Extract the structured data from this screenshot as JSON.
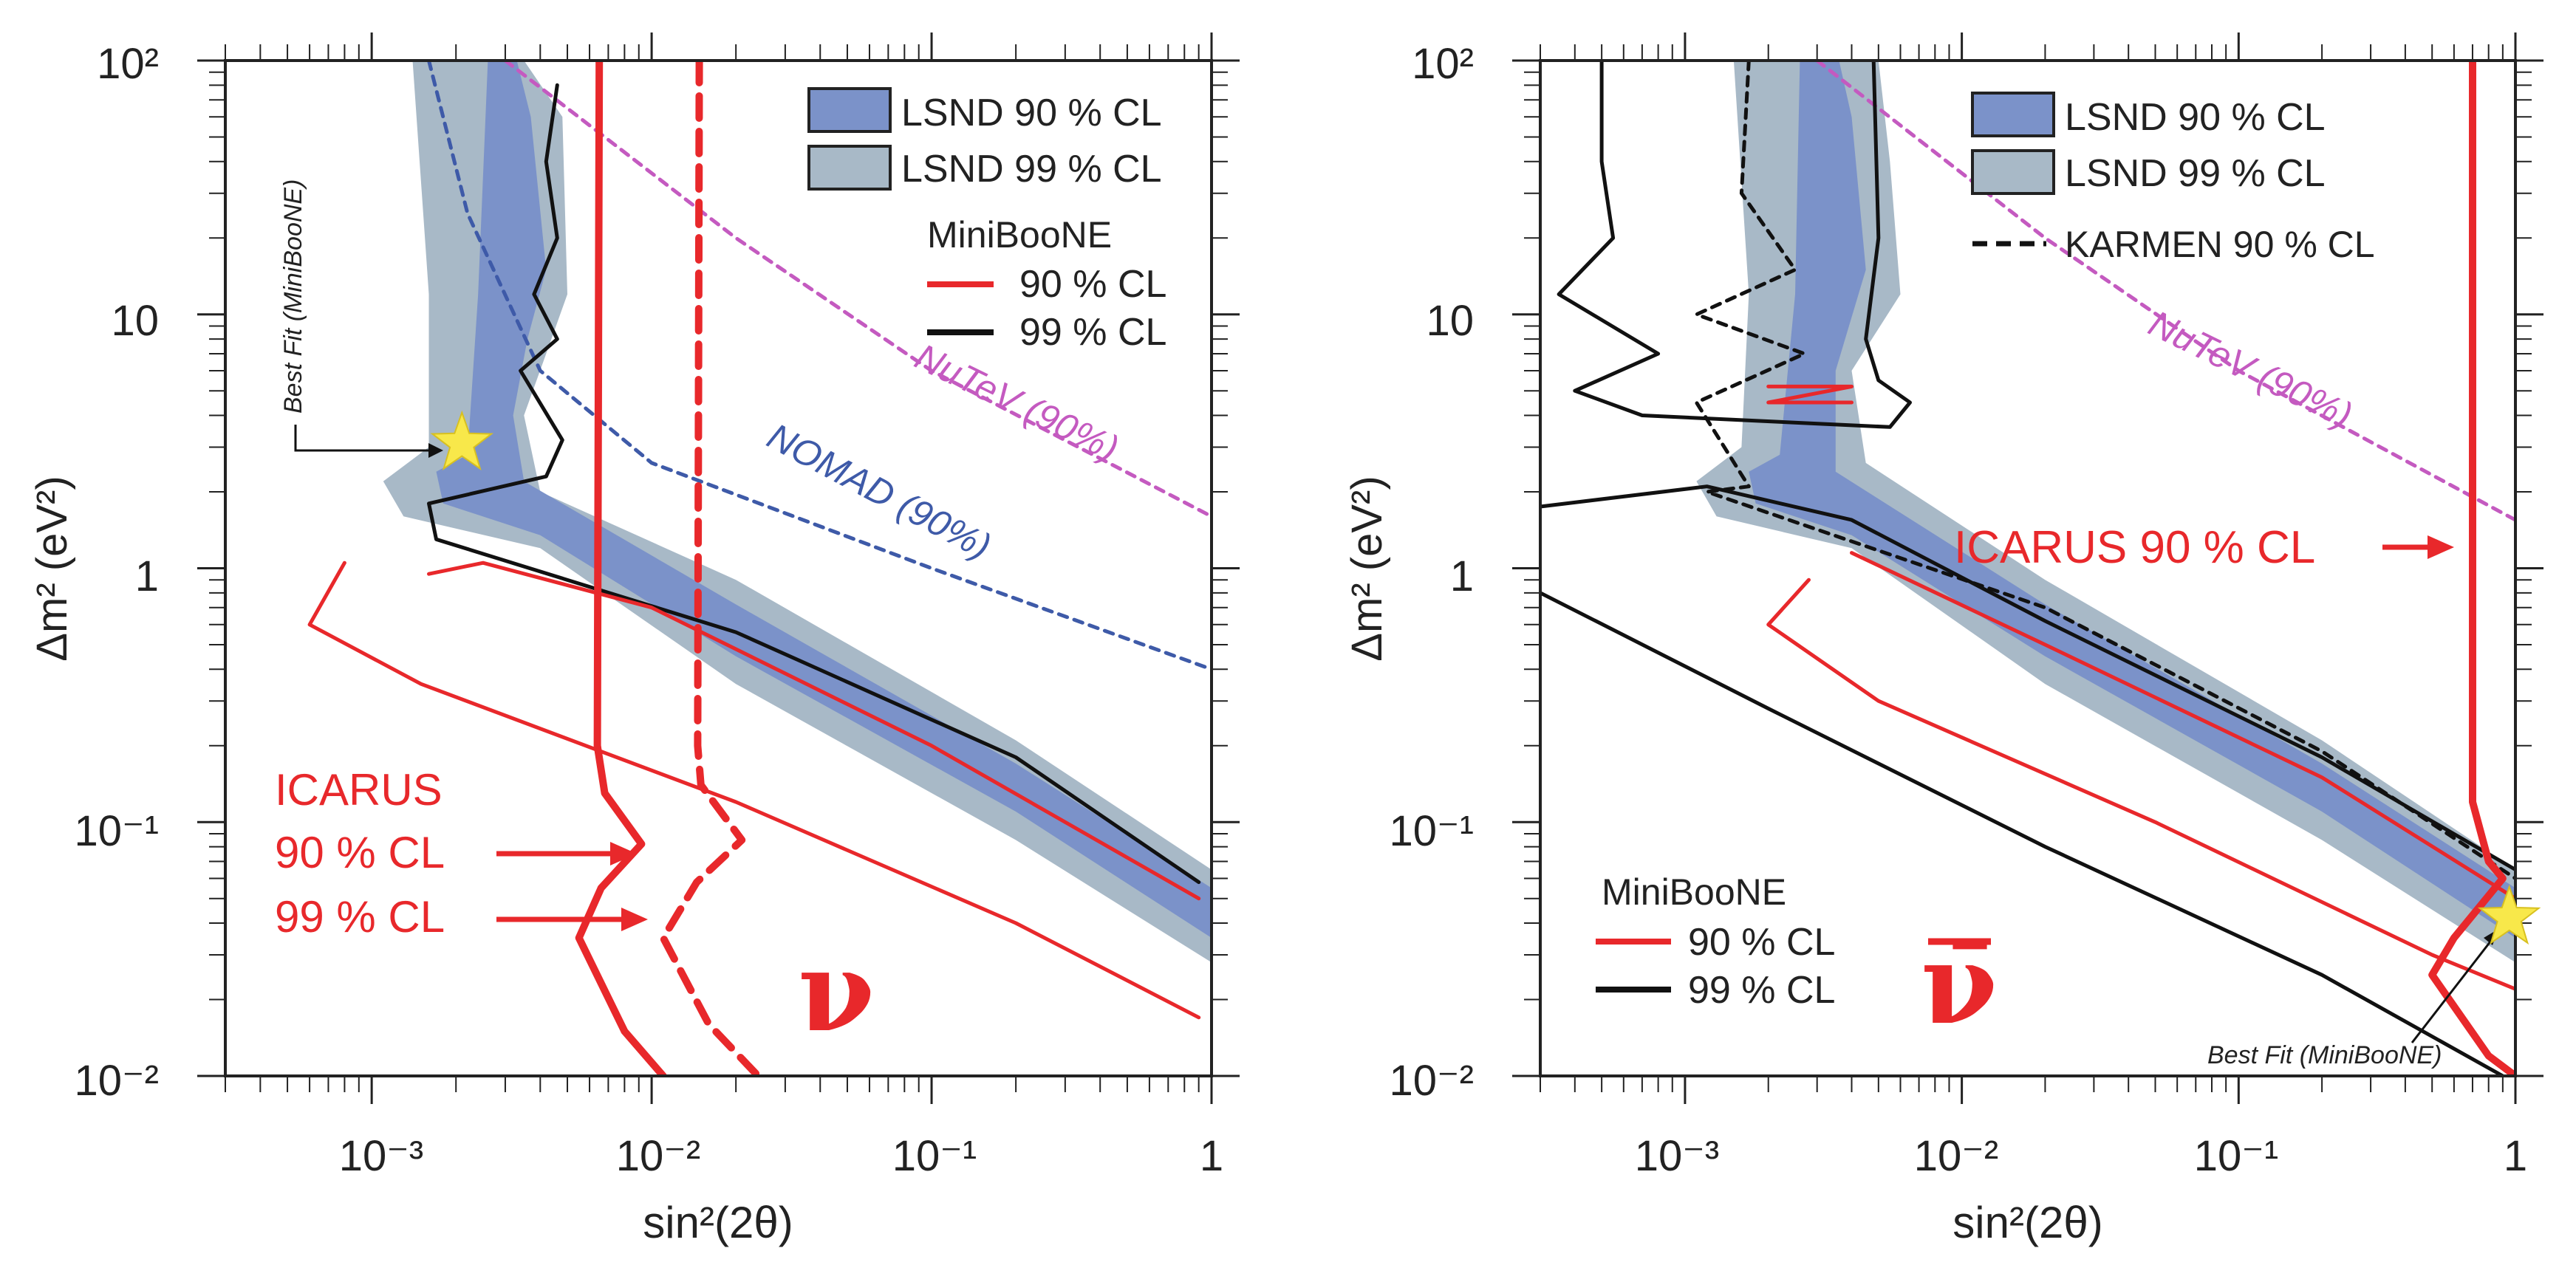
{
  "chart_data": [
    {
      "type": "line",
      "title": "",
      "symbol": "ν",
      "xlabel": "sin²(2θ)",
      "ylabel": "Δm² (eV²)",
      "xscale": "log",
      "yscale": "log",
      "xlim": [
        0.0003,
        1
      ],
      "ylim": [
        0.01,
        100
      ],
      "x_tick_labels": [
        "10⁻³",
        "10⁻²",
        "10⁻¹",
        "1"
      ],
      "y_tick_labels": [
        "10⁻²",
        "10⁻¹",
        "1",
        "10",
        "10²"
      ],
      "legend": {
        "placement": "top-right",
        "items": [
          "LSND 90 % CL",
          "LSND 99 % CL"
        ],
        "heading": "MiniBooNE",
        "lines": [
          "90 % CL",
          "99 % CL"
        ]
      },
      "annotations": {
        "best_fit": "Best Fit (MiniBooNE)",
        "nutev": "NuTeV (90%)",
        "nomad": "NOMAD (90%)",
        "icarus_title": "ICARUS",
        "icarus_90": "90 % CL",
        "icarus_99": "99 % CL"
      },
      "best_fit_point": {
        "x": 0.0021,
        "y": 3.1
      },
      "series": [
        {
          "name": "LSND 99 % CL",
          "kind": "band",
          "color": "#a8b9c7",
          "upper": [
            [
              0.0016,
              100
            ],
            [
              0.0035,
              100
            ],
            [
              0.0048,
              60
            ],
            [
              0.005,
              12
            ],
            [
              0.0042,
              7
            ],
            [
              0.0035,
              4
            ],
            [
              0.004,
              2
            ],
            [
              0.02,
              0.9
            ],
            [
              0.2,
              0.21
            ],
            [
              1,
              0.065
            ]
          ],
          "lower": [
            [
              1,
              0.028
            ],
            [
              0.2,
              0.085
            ],
            [
              0.02,
              0.35
            ],
            [
              0.004,
              1.2
            ],
            [
              0.0013,
              1.6
            ],
            [
              0.0011,
              2.2
            ],
            [
              0.0016,
              3.0
            ],
            [
              0.0016,
              12
            ],
            [
              0.0014,
              100
            ]
          ]
        },
        {
          "name": "LSND 90 % CL",
          "kind": "band",
          "color": "#7b92c9",
          "upper": [
            [
              0.0027,
              100
            ],
            [
              0.0033,
              100
            ],
            [
              0.0037,
              60
            ],
            [
              0.0042,
              15
            ],
            [
              0.0036,
              8
            ],
            [
              0.0032,
              4
            ],
            [
              0.0035,
              2.2
            ],
            [
              0.02,
              0.72
            ],
            [
              0.2,
              0.17
            ],
            [
              1,
              0.055
            ]
          ],
          "lower": [
            [
              1,
              0.035
            ],
            [
              0.2,
              0.11
            ],
            [
              0.02,
              0.45
            ],
            [
              0.004,
              1.35
            ],
            [
              0.0018,
              1.8
            ],
            [
              0.0017,
              2.4
            ],
            [
              0.0022,
              2.8
            ],
            [
              0.0024,
              12
            ],
            [
              0.0026,
              100
            ]
          ]
        },
        {
          "name": "NuTeV (90%)",
          "color": "#c45ac0",
          "dash": true,
          "points": [
            [
              0.003,
              100
            ],
            [
              0.02,
              20
            ],
            [
              0.1,
              6
            ],
            [
              1,
              1.6
            ]
          ]
        },
        {
          "name": "NOMAD (90%)",
          "color": "#3e5aa8",
          "dash": true,
          "points": [
            [
              0.0016,
              100
            ],
            [
              0.0022,
              25
            ],
            [
              0.004,
              6
            ],
            [
              0.01,
              2.6
            ],
            [
              0.1,
              1.0
            ],
            [
              1,
              0.4
            ]
          ]
        },
        {
          "name": "MiniBooNE 99 % CL",
          "color": "#111111",
          "points": [
            [
              0.0046,
              80
            ],
            [
              0.0042,
              40
            ],
            [
              0.0046,
              20
            ],
            [
              0.0038,
              12
            ],
            [
              0.0046,
              8
            ],
            [
              0.0034,
              6
            ],
            [
              0.0048,
              3.2
            ],
            [
              0.0042,
              2.3
            ],
            [
              0.0016,
              1.8
            ],
            [
              0.0017,
              1.3
            ],
            [
              0.02,
              0.56
            ],
            [
              0.2,
              0.18
            ],
            [
              0.9,
              0.058
            ]
          ]
        },
        {
          "name": "MiniBooNE 90 % CL",
          "color": "#e8282b",
          "points": [
            [
              0.0016,
              0.95
            ],
            [
              0.0025,
              1.05
            ],
            [
              0.01,
              0.7
            ],
            [
              0.1,
              0.2
            ],
            [
              0.9,
              0.05
            ]
          ]
        },
        {
          "name": "MiniBooNE 90 % CL (outer)",
          "color": "#e8282b",
          "points": [
            [
              0.0008,
              1.05
            ],
            [
              0.0006,
              0.6
            ],
            [
              0.0015,
              0.35
            ],
            [
              0.02,
              0.12
            ],
            [
              0.2,
              0.04
            ],
            [
              0.9,
              0.017
            ]
          ]
        },
        {
          "name": "ICARUS 90 % CL",
          "color": "#e8282b",
          "thick": true,
          "points": [
            [
              0.0065,
              100
            ],
            [
              0.0064,
              0.2
            ],
            [
              0.0068,
              0.13
            ],
            [
              0.0092,
              0.082
            ],
            [
              0.0066,
              0.055
            ],
            [
              0.0055,
              0.035
            ],
            [
              0.008,
              0.015
            ],
            [
              0.011,
              0.01
            ]
          ]
        },
        {
          "name": "ICARUS 99 % CL",
          "color": "#e8282b",
          "thick": true,
          "dash": true,
          "points": [
            [
              0.0148,
              100
            ],
            [
              0.0146,
              0.2
            ],
            [
              0.015,
              0.14
            ],
            [
              0.021,
              0.085
            ],
            [
              0.0145,
              0.058
            ],
            [
              0.011,
              0.035
            ],
            [
              0.016,
              0.016
            ],
            [
              0.024,
              0.01
            ]
          ]
        }
      ]
    },
    {
      "type": "line",
      "title": "",
      "symbol": "ν̄",
      "xlabel": "sin²(2θ)",
      "ylabel": "Δm² (eV²)",
      "xscale": "log",
      "yscale": "log",
      "xlim": [
        0.0003,
        1
      ],
      "ylim": [
        0.01,
        100
      ],
      "x_tick_labels": [
        "10⁻³",
        "10⁻²",
        "10⁻¹",
        "1"
      ],
      "y_tick_labels": [
        "10⁻²",
        "10⁻¹",
        "1",
        "10",
        "10²"
      ],
      "legend": {
        "placement": "top-right",
        "items": [
          "LSND 90 % CL",
          "LSND 99 % CL"
        ],
        "karmen": "KARMEN 90 % CL",
        "heading": "MiniBooNE",
        "heading_placement": "bottom-left",
        "lines": [
          "90 % CL",
          "99 % CL"
        ]
      },
      "annotations": {
        "best_fit": "Best Fit (MiniBooNE)",
        "nutev": "NuTeV (90%)",
        "icarus": "ICARUS 90 % CL"
      },
      "best_fit_point": {
        "x": 0.95,
        "y": 0.042
      },
      "series": [
        {
          "name": "LSND 99 % CL",
          "kind": "band",
          "color": "#a8b9c7",
          "upper": [
            [
              0.0018,
              100
            ],
            [
              0.005,
              100
            ],
            [
              0.0055,
              40
            ],
            [
              0.006,
              12
            ],
            [
              0.004,
              6
            ],
            [
              0.0045,
              2.6
            ],
            [
              0.02,
              0.9
            ],
            [
              0.2,
              0.21
            ],
            [
              1,
              0.065
            ]
          ],
          "lower": [
            [
              1,
              0.028
            ],
            [
              0.2,
              0.085
            ],
            [
              0.02,
              0.35
            ],
            [
              0.004,
              1.2
            ],
            [
              0.0013,
              1.6
            ],
            [
              0.0011,
              2.2
            ],
            [
              0.0016,
              3.0
            ],
            [
              0.0017,
              12
            ],
            [
              0.0015,
              100
            ]
          ]
        },
        {
          "name": "LSND 90 % CL",
          "kind": "band",
          "color": "#7b92c9",
          "upper": [
            [
              0.0024,
              100
            ],
            [
              0.0036,
              100
            ],
            [
              0.004,
              60
            ],
            [
              0.0045,
              15
            ],
            [
              0.0035,
              6
            ],
            [
              0.0035,
              2.4
            ],
            [
              0.02,
              0.72
            ],
            [
              0.2,
              0.17
            ],
            [
              1,
              0.055
            ]
          ],
          "lower": [
            [
              1,
              0.035
            ],
            [
              0.2,
              0.11
            ],
            [
              0.02,
              0.45
            ],
            [
              0.004,
              1.35
            ],
            [
              0.0018,
              1.8
            ],
            [
              0.0017,
              2.4
            ],
            [
              0.0022,
              2.8
            ],
            [
              0.0025,
              12
            ],
            [
              0.0026,
              100
            ]
          ]
        },
        {
          "name": "NuTeV (90%)",
          "color": "#c45ac0",
          "dash": true,
          "points": [
            [
              0.003,
              100
            ],
            [
              0.02,
              20
            ],
            [
              0.1,
              6
            ],
            [
              1,
              1.55
            ]
          ]
        },
        {
          "name": "KARMEN 90 % CL",
          "color": "#111111",
          "dash": true,
          "points": [
            [
              0.0017,
              100
            ],
            [
              0.0016,
              30
            ],
            [
              0.0025,
              15
            ],
            [
              0.0011,
              10
            ],
            [
              0.0027,
              7
            ],
            [
              0.0011,
              4.5
            ],
            [
              0.0017,
              2.1
            ],
            [
              0.0012,
              2.0
            ],
            [
              0.02,
              0.7
            ],
            [
              0.2,
              0.19
            ],
            [
              1,
              0.06
            ]
          ]
        },
        {
          "name": "MiniBooNE 99 % CL",
          "color": "#111111",
          "points": [
            [
              0.0005,
              100
            ],
            [
              0.0005,
              40
            ],
            [
              0.00055,
              20
            ],
            [
              0.00035,
              12
            ],
            [
              0.0008,
              7
            ],
            [
              0.0004,
              5
            ],
            [
              0.0007,
              4
            ],
            [
              0.0055,
              3.6
            ],
            [
              0.0065,
              4.5
            ],
            [
              0.005,
              5.5
            ],
            [
              0.0045,
              8
            ],
            [
              0.005,
              20
            ],
            [
              0.0048,
              100
            ]
          ]
        },
        {
          "name": "MiniBooNE 99 % CL (inner)",
          "color": "#111111",
          "points": [
            [
              0.0003,
              1.75
            ],
            [
              0.0012,
              2.1
            ],
            [
              0.004,
              1.55
            ],
            [
              0.02,
              0.62
            ],
            [
              0.2,
              0.18
            ],
            [
              1,
              0.065
            ]
          ]
        },
        {
          "name": "MiniBooNE 99 % CL (outer)",
          "color": "#111111",
          "points": [
            [
              0.0003,
              0.8
            ],
            [
              0.002,
              0.28
            ],
            [
              0.02,
              0.08
            ],
            [
              0.2,
              0.025
            ],
            [
              0.9,
              0.01
            ]
          ]
        },
        {
          "name": "MiniBooNE 90 % CL",
          "color": "#e8282b",
          "points": [
            [
              0.002,
              5.2
            ],
            [
              0.004,
              5.2
            ],
            [
              0.002,
              4.5
            ],
            [
              0.004,
              4.5
            ]
          ]
        },
        {
          "name": "MiniBooNE 90 % CL (band)",
          "color": "#e8282b",
          "points": [
            [
              0.004,
              1.15
            ],
            [
              0.02,
              0.5
            ],
            [
              0.2,
              0.15
            ],
            [
              1,
              0.05
            ]
          ]
        },
        {
          "name": "MiniBooNE 90 % CL (lower)",
          "color": "#e8282b",
          "points": [
            [
              0.0028,
              0.9
            ],
            [
              0.002,
              0.6
            ],
            [
              0.005,
              0.3
            ],
            [
              0.05,
              0.1
            ],
            [
              0.5,
              0.03
            ],
            [
              1,
              0.022
            ]
          ]
        },
        {
          "name": "ICARUS 90 % CL",
          "color": "#e8282b",
          "thick": true,
          "points": [
            [
              0.7,
              100
            ],
            [
              0.7,
              0.12
            ],
            [
              0.8,
              0.07
            ],
            [
              0.9,
              0.06
            ],
            [
              0.6,
              0.035
            ],
            [
              0.5,
              0.025
            ],
            [
              0.8,
              0.012
            ],
            [
              1,
              0.01
            ]
          ]
        }
      ]
    }
  ]
}
